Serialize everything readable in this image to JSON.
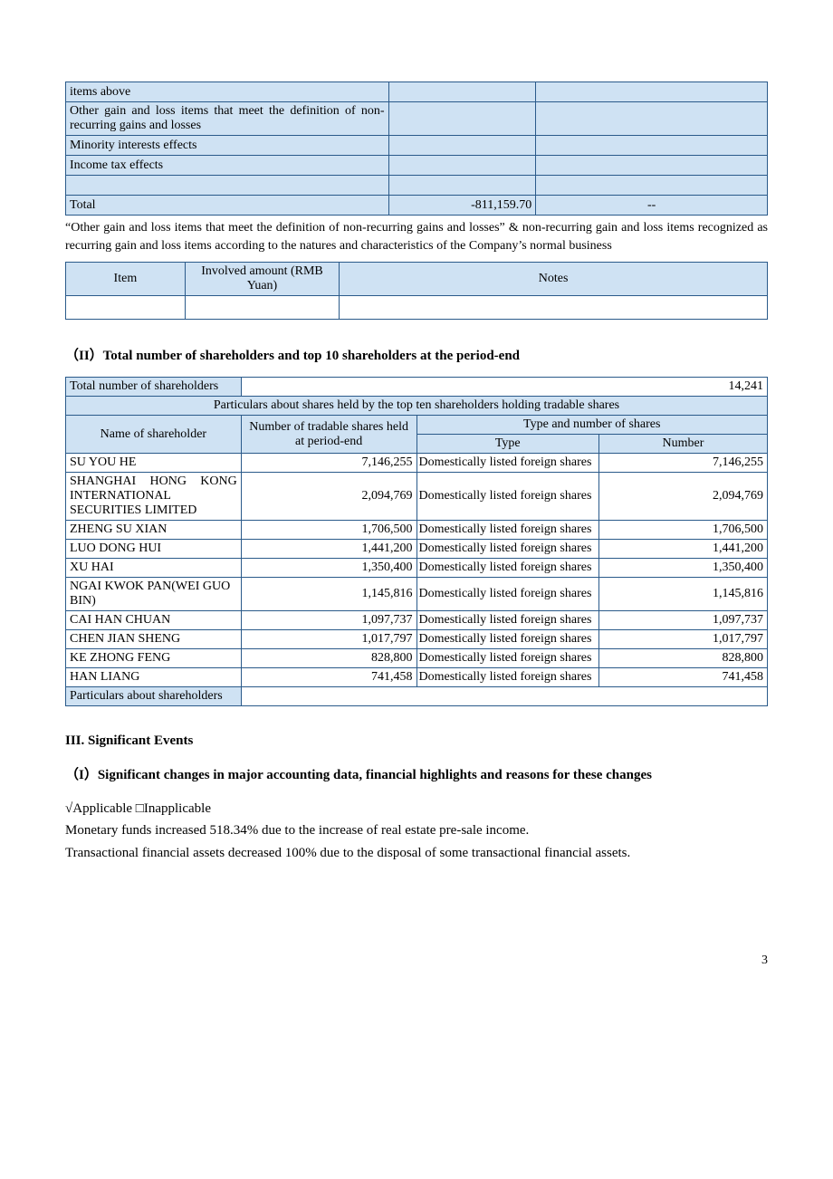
{
  "table1": {
    "rows": [
      {
        "desc": "items above",
        "v1": "",
        "v2": ""
      },
      {
        "desc": "Other gain and loss items that meet the definition of non-recurring gains and losses",
        "v1": "",
        "v2": ""
      },
      {
        "desc": "Minority interests effects",
        "v1": "",
        "v2": ""
      },
      {
        "desc": "Income tax effects",
        "v1": "",
        "v2": ""
      },
      {
        "desc": "",
        "v1": "",
        "v2": ""
      },
      {
        "desc": "Total",
        "v1": "-811,159.70",
        "v2": "--"
      }
    ],
    "col_widths": [
      "46%",
      "21%",
      "33%"
    ]
  },
  "para1": "“Other gain and loss items that meet the definition of non-recurring gains and losses” & non-recurring gain and loss items recognized as recurring gain and loss items according to the natures and characteristics of the Company’s normal business",
  "table2": {
    "headers": [
      "Item",
      "Involved amount (RMB Yuan)",
      "Notes"
    ],
    "col_widths": [
      "17%",
      "22%",
      "61%"
    ]
  },
  "section2_title": "（II）Total number of shareholders and top 10 shareholders at the period-end",
  "table3": {
    "total_label": "Total number of shareholders",
    "total_value": "14,241",
    "banner": "Particulars about shares held by the top ten shareholders holding tradable shares",
    "h_name": "Name of shareholder",
    "h_shares": "Number of tradable shares held at period-end",
    "h_typegroup": "Type and number of shares",
    "h_type": "Type",
    "h_number": "Number",
    "rows": [
      {
        "name": "SU YOU HE",
        "shares": "7,146,255",
        "type": "Domestically listed foreign shares",
        "number": "7,146,255"
      },
      {
        "name": "SHANGHAI HONG KONG INTERNATIONAL SECURITIES LIMITED",
        "shares": "2,094,769",
        "type": "Domestically listed foreign shares",
        "number": "2,094,769",
        "spread": true
      },
      {
        "name": "ZHENG SU XIAN",
        "shares": "1,706,500",
        "type": "Domestically listed foreign shares",
        "number": "1,706,500"
      },
      {
        "name": "LUO DONG HUI",
        "shares": "1,441,200",
        "type": "Domestically listed foreign shares",
        "number": "1,441,200"
      },
      {
        "name": "XU HAI",
        "shares": "1,350,400",
        "type": "Domestically listed foreign shares",
        "number": "1,350,400"
      },
      {
        "name": "NGAI KWOK PAN(WEI GUO BIN)",
        "shares": "1,145,816",
        "type": "Domestically listed foreign shares",
        "number": "1,145,816"
      },
      {
        "name": "CAI HAN CHUAN",
        "shares": "1,097,737",
        "type": "Domestically listed foreign shares",
        "number": "1,097,737"
      },
      {
        "name": "CHEN JIAN SHENG",
        "shares": "1,017,797",
        "type": "Domestically listed foreign shares",
        "number": "1,017,797"
      },
      {
        "name": "KE ZHONG FENG",
        "shares": "828,800",
        "type": "Domestically listed foreign shares",
        "number": "828,800"
      },
      {
        "name": "HAN LIANG",
        "shares": "741,458",
        "type": "Domestically listed foreign shares",
        "number": "741,458"
      }
    ],
    "footer_label": "Particulars about shareholders",
    "col_widths": [
      "25%",
      "25%",
      "26%",
      "24%"
    ]
  },
  "section3_title": "III. Significant Events",
  "sub3_1_title": "（I）Significant changes in major accounting data, financial highlights and reasons for these changes",
  "applicable": "√Applicable □Inapplicable",
  "body_lines": [
    "Monetary funds increased 518.34% due to the increase of real estate pre-sale income.",
    "Transactional financial assets decreased 100% due to the disposal of some transactional financial assets."
  ],
  "page_number": "3"
}
